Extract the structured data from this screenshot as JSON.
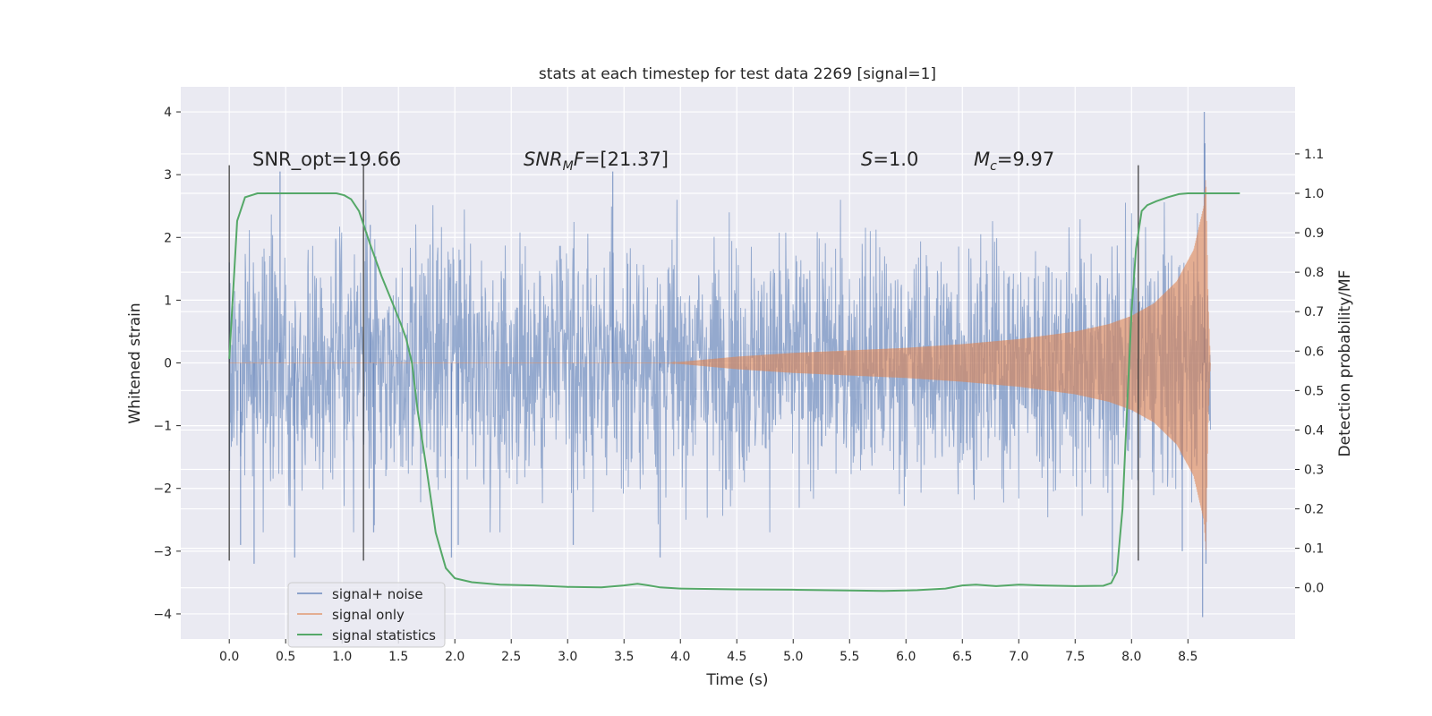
{
  "chart_data": {
    "type": "line",
    "title": "stats at each timestep for test data 2269 [signal=1]",
    "xlabel": "Time (s)",
    "ylabel": "Whitened strain",
    "ylabel_right": "Detection probability/MF",
    "xlim": [
      -0.43,
      9.45
    ],
    "ylim": [
      -4.4,
      4.4
    ],
    "ylim_right": [
      -0.13,
      1.27
    ],
    "x_ticks": [
      "0.0",
      "0.5",
      "1.0",
      "1.5",
      "2.0",
      "2.5",
      "3.0",
      "3.5",
      "4.0",
      "4.5",
      "5.0",
      "5.5",
      "6.0",
      "6.5",
      "7.0",
      "7.5",
      "8.0",
      "8.5"
    ],
    "y_ticks": [
      "−4",
      "−3",
      "−2",
      "−1",
      "0",
      "1",
      "2",
      "3",
      "4"
    ],
    "y_right_ticks": [
      "0.0",
      "0.1",
      "0.2",
      "0.3",
      "0.4",
      "0.5",
      "0.6",
      "0.7",
      "0.8",
      "0.9",
      "1.0",
      "1.1"
    ],
    "grid": true,
    "legend_position": "lower-left",
    "annotations": {
      "snr_opt": "SNR_opt=19.66",
      "snr_mf_italic": "SNR",
      "snr_mf_sub": "M",
      "snr_mf_italic2": "F",
      "snr_mf_value": "=[21.37]",
      "s_italic": "S",
      "s_value": "=1.0",
      "mc_italic": "M",
      "mc_sub": "c",
      "mc_value": "=9.97"
    },
    "markers_x": [
      0.0,
      1.19,
      8.06
    ],
    "series": [
      {
        "name": "signal+ noise",
        "color": "#4c72b0",
        "x_range": [
          0.0,
          8.7
        ],
        "noise_sigma": 1.0,
        "peak_values": [
          [
            0.0,
            1.6
          ],
          [
            0.1,
            -2.9
          ],
          [
            0.22,
            -3.2
          ],
          [
            0.45,
            3.05
          ],
          [
            0.58,
            -3.1
          ],
          [
            1.25,
            2.2
          ],
          [
            1.28,
            -2.7
          ],
          [
            1.97,
            -3.1
          ],
          [
            2.03,
            -2.9
          ],
          [
            3.05,
            -2.9
          ],
          [
            3.4,
            3.05
          ],
          [
            3.82,
            -3.1
          ],
          [
            7.83,
            -3.4
          ],
          [
            8.45,
            -3.0
          ],
          [
            8.63,
            -4.05
          ],
          [
            8.645,
            4.0
          ],
          [
            8.65,
            3.5
          ],
          [
            8.66,
            -3.2
          ]
        ]
      },
      {
        "name": "signal only",
        "color": "#dd8452",
        "x_range": [
          0.0,
          8.7
        ],
        "envelope": [
          [
            3.9,
            0.0
          ],
          [
            4.5,
            0.1
          ],
          [
            5.0,
            0.16
          ],
          [
            5.5,
            0.2
          ],
          [
            6.0,
            0.24
          ],
          [
            6.5,
            0.3
          ],
          [
            7.0,
            0.38
          ],
          [
            7.5,
            0.5
          ],
          [
            7.8,
            0.62
          ],
          [
            8.0,
            0.75
          ],
          [
            8.2,
            0.95
          ],
          [
            8.4,
            1.3
          ],
          [
            8.55,
            1.8
          ],
          [
            8.64,
            2.5
          ],
          [
            8.66,
            3.0
          ],
          [
            8.68,
            1.0
          ],
          [
            8.7,
            0.0
          ]
        ]
      },
      {
        "name": "signal statistics",
        "color": "#55a868",
        "axis": "right",
        "x": [
          0.0,
          0.07,
          0.14,
          0.25,
          0.4,
          0.6,
          0.8,
          0.95,
          1.02,
          1.08,
          1.15,
          1.25,
          1.35,
          1.45,
          1.52,
          1.57,
          1.62,
          1.67,
          1.75,
          1.83,
          1.92,
          2.0,
          2.15,
          2.4,
          2.7,
          3.0,
          3.3,
          3.5,
          3.62,
          3.72,
          3.82,
          4.0,
          4.5,
          5.0,
          5.5,
          5.8,
          6.1,
          6.35,
          6.5,
          6.62,
          6.8,
          7.0,
          7.2,
          7.5,
          7.75,
          7.82,
          7.87,
          7.92,
          7.96,
          8.0,
          8.04,
          8.09,
          8.14,
          8.22,
          8.32,
          8.42,
          8.5,
          8.6,
          8.8,
          8.96
        ],
        "y": [
          0.58,
          0.93,
          0.99,
          1.0,
          1.0,
          1.0,
          1.0,
          1.0,
          0.995,
          0.985,
          0.955,
          0.87,
          0.79,
          0.72,
          0.67,
          0.63,
          0.57,
          0.45,
          0.3,
          0.14,
          0.05,
          0.024,
          0.014,
          0.008,
          0.006,
          0.002,
          0.001,
          0.006,
          0.01,
          0.006,
          0.001,
          -0.002,
          -0.004,
          -0.005,
          -0.007,
          -0.008,
          -0.006,
          -0.002,
          0.006,
          0.008,
          0.004,
          0.008,
          0.006,
          0.004,
          0.005,
          0.012,
          0.04,
          0.2,
          0.45,
          0.7,
          0.86,
          0.955,
          0.97,
          0.98,
          0.99,
          0.998,
          1.0,
          1.0,
          1.0,
          1.0
        ]
      }
    ]
  }
}
